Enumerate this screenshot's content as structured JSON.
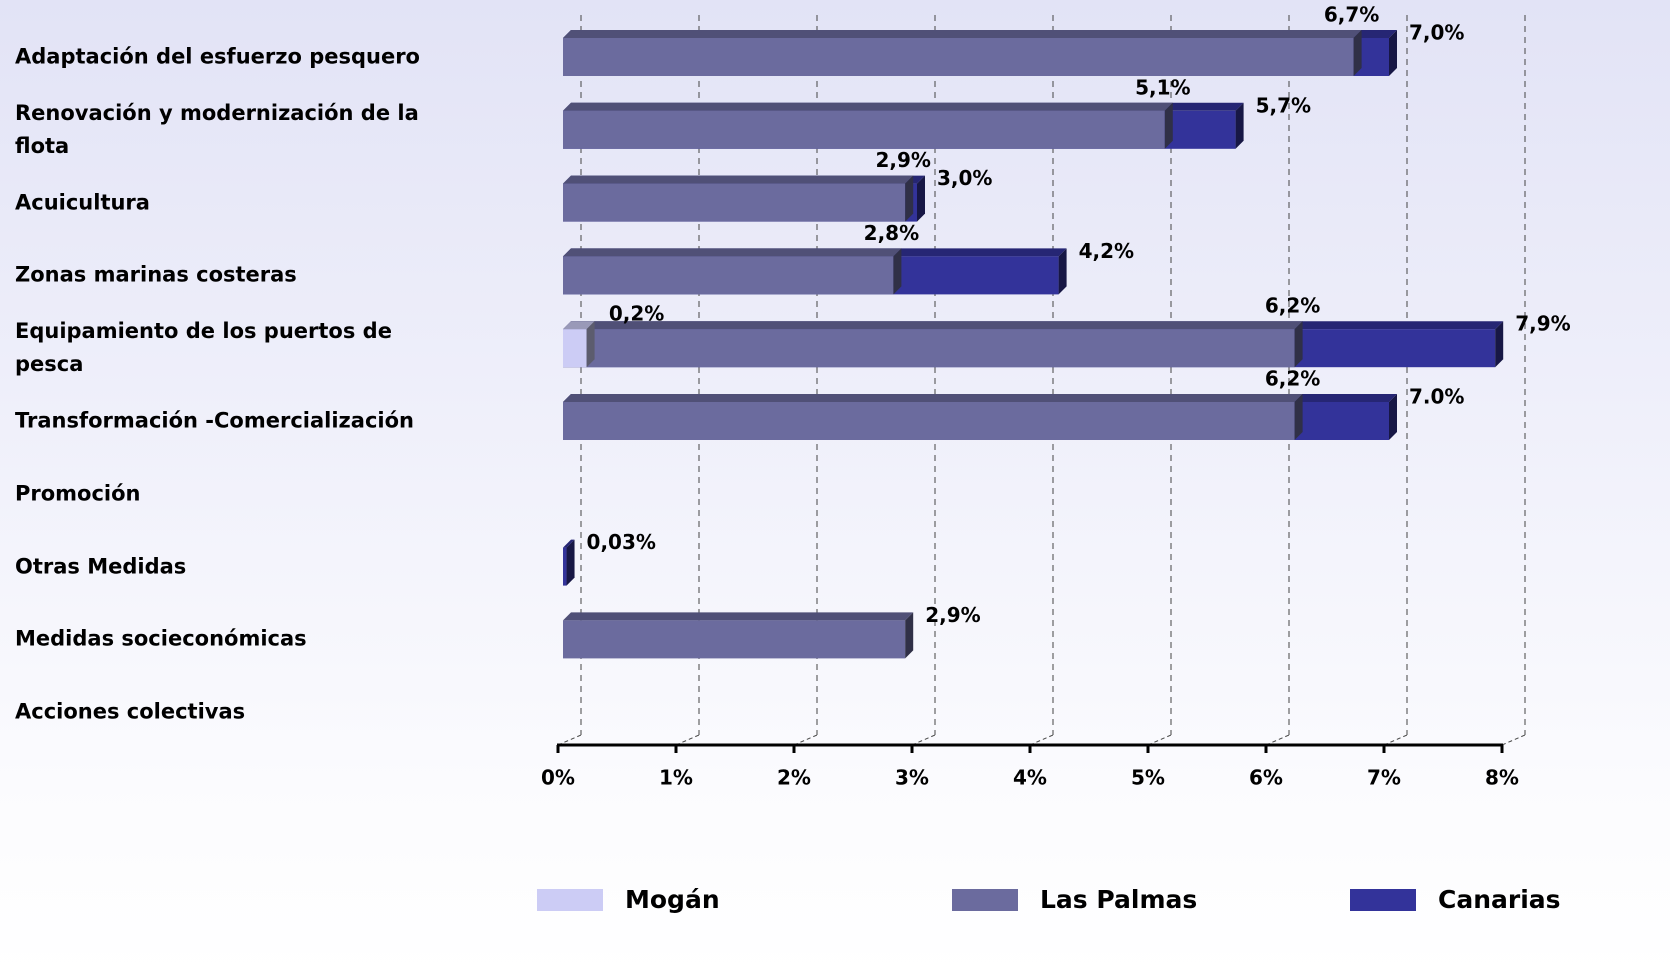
{
  "chart_data": {
    "type": "bar",
    "orientation": "horizontal",
    "barmode": "overlay",
    "categories": [
      "Adaptación del esfuerzo pesquero",
      "Renovación y modernización de la flota",
      "Acuicultura",
      "Zonas marinas costeras",
      "Equipamiento de los puertos de pesca",
      "Transformación -Comercialización",
      "Promoción",
      "Otras Medidas",
      "Medidas socieconómicas",
      "Acciones colectivas"
    ],
    "series": [
      {
        "name": "Canarias",
        "color": "#33339a",
        "values": [
          7.0,
          5.7,
          3.0,
          4.2,
          7.9,
          7.0,
          null,
          0.03,
          null,
          null
        ],
        "value_labels": [
          "7,0%",
          "5,7%",
          "3,0%",
          "4,2%",
          "7,9%",
          "7.0%",
          null,
          "0,03%",
          null,
          null
        ]
      },
      {
        "name": "Las Palmas",
        "color": "#6b6b9e",
        "values": [
          6.7,
          5.1,
          2.9,
          2.8,
          6.2,
          6.2,
          null,
          null,
          2.9,
          null
        ],
        "value_labels": [
          "6,7%",
          "5,1%",
          "2,9%",
          "2,8%",
          "6,2%",
          "6,2%",
          null,
          null,
          "2,9%",
          null
        ]
      },
      {
        "name": "Mogán",
        "color": "#ccccf5",
        "values": [
          null,
          null,
          null,
          null,
          0.2,
          null,
          null,
          null,
          null,
          null
        ],
        "value_labels": [
          null,
          null,
          null,
          null,
          "0,2%",
          null,
          null,
          null,
          null,
          null
        ]
      }
    ],
    "legend_order": [
      "Mogán",
      "Las Palmas",
      "Canarias"
    ],
    "xlim": [
      0,
      8
    ],
    "xticks": [
      {
        "value": 0,
        "label": "0%"
      },
      {
        "value": 1,
        "label": "1%"
      },
      {
        "value": 2,
        "label": "2%"
      },
      {
        "value": 3,
        "label": "3%"
      },
      {
        "value": 4,
        "label": "4%"
      },
      {
        "value": 5,
        "label": "5%"
      },
      {
        "value": 6,
        "label": "6%"
      },
      {
        "value": 7,
        "label": "7%"
      },
      {
        "value": 8,
        "label": "8%"
      }
    ],
    "grid": true,
    "legend": "bottom"
  }
}
